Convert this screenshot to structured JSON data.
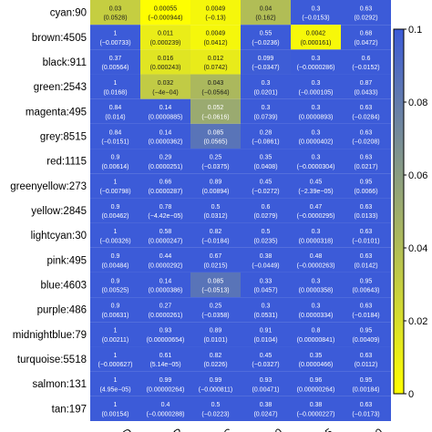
{
  "chart_data": {
    "type": "heatmap",
    "rows": [
      "cyan:90",
      "brown:4505",
      "black:911",
      "green:2543",
      "magenta:495",
      "grey:8515",
      "red:1115",
      "greenyellow:273",
      "yellow:2845",
      "lightcyan:30",
      "pink:495",
      "blue:4603",
      "purple:486",
      "midnightblue:79",
      "turquoise:5518",
      "salmon:131",
      "tan:197"
    ],
    "columns": [
      "",
      "",
      "",
      "",
      "",
      ""
    ],
    "visible_column_label_fragments": [
      "D",
      "P",
      "C",
      "0",
      "45",
      "0"
    ],
    "cells": [
      [
        {
          "p": "0.03",
          "r": "(0.0528)"
        },
        {
          "p": "0.00055",
          "r": "(−0.000944)"
        },
        {
          "p": "0.0049",
          "r": "(−0.13)"
        },
        {
          "p": "0.04",
          "r": "(0.162)"
        },
        {
          "p": "0.3",
          "r": "(−0.0153)"
        },
        {
          "p": "0.63",
          "r": "(0.0292)"
        }
      ],
      [
        {
          "p": "1",
          "r": "(−0.00733)"
        },
        {
          "p": "0.011",
          "r": "(0.000239)"
        },
        {
          "p": "0.0049",
          "r": "(0.0412)"
        },
        {
          "p": "0.55",
          "r": "(−0.0236)"
        },
        {
          "p": "0.0042",
          "r": "(0.000161)"
        },
        {
          "p": "0.68",
          "r": "(0.0472)"
        }
      ],
      [
        {
          "p": "0.37",
          "r": "(0.00564)"
        },
        {
          "p": "0.016",
          "r": "(0.000243)"
        },
        {
          "p": "0.012",
          "r": "(0.0742)"
        },
        {
          "p": "0.099",
          "r": "(−0.0347)"
        },
        {
          "p": "0.3",
          "r": "(−0.0000286)"
        },
        {
          "p": "0.6",
          "r": "(−0.0152)"
        }
      ],
      [
        {
          "p": "1",
          "r": "(0.0168)"
        },
        {
          "p": "0.032",
          "r": "(−4e−04)"
        },
        {
          "p": "0.043",
          "r": "(−0.0564)"
        },
        {
          "p": "0.3",
          "r": "(0.0201)"
        },
        {
          "p": "0.3",
          "r": "(−0.000105)"
        },
        {
          "p": "0.87",
          "r": "(0.0433)"
        }
      ],
      [
        {
          "p": "0.84",
          "r": "(0.014)"
        },
        {
          "p": "0.14",
          "r": "(0.0000885)"
        },
        {
          "p": "0.052",
          "r": "(−0.0616)"
        },
        {
          "p": "0.3",
          "r": "(0.0739)"
        },
        {
          "p": "0.3",
          "r": "(0.0000893)"
        },
        {
          "p": "0.63",
          "r": "(−0.0284)"
        }
      ],
      [
        {
          "p": "0.84",
          "r": "(−0.0151)"
        },
        {
          "p": "0.14",
          "r": "(0.0000362)"
        },
        {
          "p": "0.085",
          "r": "(0.0565)"
        },
        {
          "p": "0.28",
          "r": "(−0.0861)"
        },
        {
          "p": "0.3",
          "r": "(0.0000402)"
        },
        {
          "p": "0.63",
          "r": "(−0.0208)"
        }
      ],
      [
        {
          "p": "0.9",
          "r": "(0.00614)"
        },
        {
          "p": "0.29",
          "r": "(0.0000251)"
        },
        {
          "p": "0.25",
          "r": "(−0.0375)"
        },
        {
          "p": "0.35",
          "r": "(0.0408)"
        },
        {
          "p": "0.3",
          "r": "(−0.0000304)"
        },
        {
          "p": "0.63",
          "r": "(0.0217)"
        }
      ],
      [
        {
          "p": "1",
          "r": "(−0.00798)"
        },
        {
          "p": "0.66",
          "r": "(0.0000287)"
        },
        {
          "p": "0.89",
          "r": "(0.00894)"
        },
        {
          "p": "0.45",
          "r": "(−0.0272)"
        },
        {
          "p": "0.45",
          "r": "(−2.39e−05)"
        },
        {
          "p": "0.95",
          "r": "(0.0066)"
        }
      ],
      [
        {
          "p": "0.9",
          "r": "(0.00462)"
        },
        {
          "p": "0.78",
          "r": "(−4.42e−05)"
        },
        {
          "p": "0.5",
          "r": "(0.0312)"
        },
        {
          "p": "0.6",
          "r": "(0.0279)"
        },
        {
          "p": "0.47",
          "r": "(−0.0000295)"
        },
        {
          "p": "0.63",
          "r": "(0.0133)"
        }
      ],
      [
        {
          "p": "1",
          "r": "(−0.00326)"
        },
        {
          "p": "0.58",
          "r": "(0.0000247)"
        },
        {
          "p": "0.82",
          "r": "(−0.0184)"
        },
        {
          "p": "0.5",
          "r": "(0.0235)"
        },
        {
          "p": "0.3",
          "r": "(0.0000318)"
        },
        {
          "p": "0.63",
          "r": "(−0.0101)"
        }
      ],
      [
        {
          "p": "0.9",
          "r": "(0.00484)"
        },
        {
          "p": "0.44",
          "r": "(0.0000292)"
        },
        {
          "p": "0.67",
          "r": "(0.0215)"
        },
        {
          "p": "0.38",
          "r": "(−0.0449)"
        },
        {
          "p": "0.48",
          "r": "(−0.0000263)"
        },
        {
          "p": "0.63",
          "r": "(0.0142)"
        }
      ],
      [
        {
          "p": "0.9",
          "r": "(0.00525)"
        },
        {
          "p": "0.14",
          "r": "(0.0000386)"
        },
        {
          "p": "0.085",
          "r": "(−0.0513)"
        },
        {
          "p": "0.33",
          "r": "(0.0457)"
        },
        {
          "p": "0.3",
          "r": "(0.0000358)"
        },
        {
          "p": "0.95",
          "r": "(0.00643)"
        }
      ],
      [
        {
          "p": "0.9",
          "r": "(0.00631)"
        },
        {
          "p": "0.27",
          "r": "(0.0000261)"
        },
        {
          "p": "0.25",
          "r": "(−0.0358)"
        },
        {
          "p": "0.3",
          "r": "(0.0531)"
        },
        {
          "p": "0.3",
          "r": "(0.0000334)"
        },
        {
          "p": "0.63",
          "r": "(−0.0184)"
        }
      ],
      [
        {
          "p": "1",
          "r": "(0.00211)"
        },
        {
          "p": "0.93",
          "r": "(0.00000654)"
        },
        {
          "p": "0.89",
          "r": "(0.0101)"
        },
        {
          "p": "0.91",
          "r": "(0.0104)"
        },
        {
          "p": "0.8",
          "r": "(0.00000841)"
        },
        {
          "p": "0.95",
          "r": "(0.00409)"
        }
      ],
      [
        {
          "p": "1",
          "r": "(−0.000627)"
        },
        {
          "p": "0.61",
          "r": "(5.14e−05)"
        },
        {
          "p": "0.82",
          "r": "(0.0226)"
        },
        {
          "p": "0.45",
          "r": "(−0.0327)"
        },
        {
          "p": "0.35",
          "r": "(0.0000466)"
        },
        {
          "p": "0.63",
          "r": "(0.0112)"
        }
      ],
      [
        {
          "p": "1",
          "r": "(4.95e−05)"
        },
        {
          "p": "0.99",
          "r": "(0.00000264)"
        },
        {
          "p": "0.99",
          "r": "(−0.000811)"
        },
        {
          "p": "0.93",
          "r": "(0.00471)"
        },
        {
          "p": "0.96",
          "r": "(0.00000264)"
        },
        {
          "p": "0.95",
          "r": "(0.00184)"
        }
      ],
      [
        {
          "p": "1",
          "r": "(0.00154)"
        },
        {
          "p": "0.4",
          "r": "(−0.0000288)"
        },
        {
          "p": "0.5",
          "r": "(−0.0223)"
        },
        {
          "p": "0.38",
          "r": "(0.0247)"
        },
        {
          "p": "0.38",
          "r": "(−0.0000227)"
        },
        {
          "p": "0.63",
          "r": "(−0.0173)"
        }
      ]
    ],
    "colorbar": {
      "min": 0,
      "max": 0.1,
      "ticks": [
        "0",
        "0.02",
        "0.04",
        "0.06",
        "0.08",
        "0.1"
      ],
      "low_color": "#ffff00",
      "high_color": "#3c5bd8"
    }
  }
}
